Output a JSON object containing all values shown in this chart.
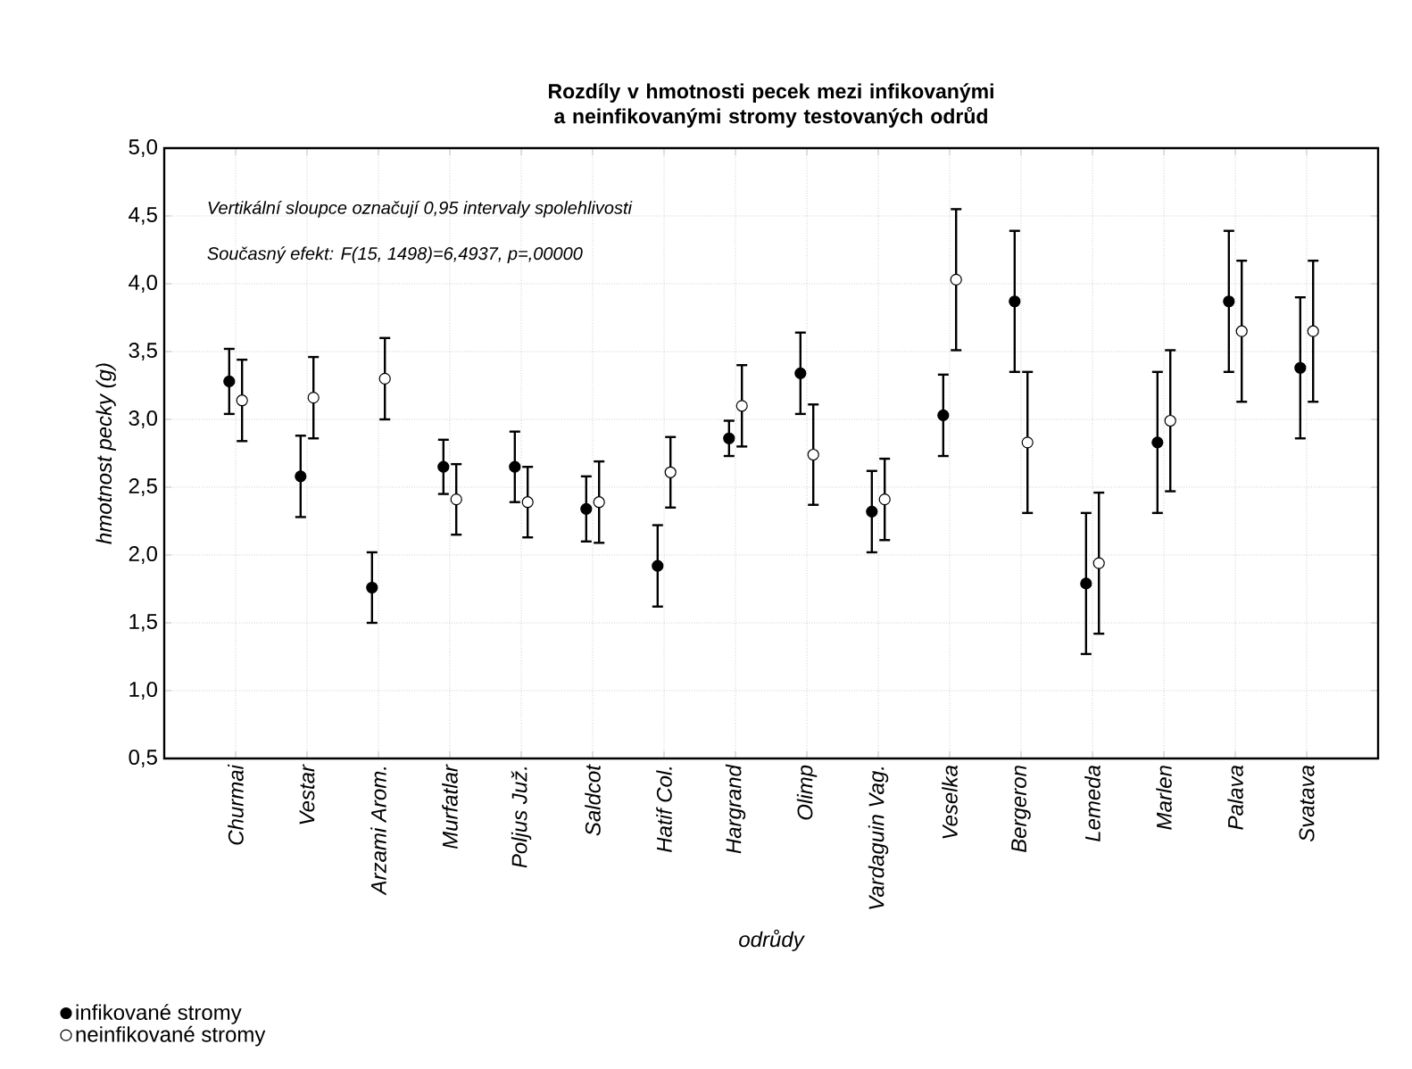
{
  "chart_data": {
    "type": "scatter",
    "title": "Rozdíly v hmotnosti pecek mezi infikovanými a neinfikovanými stromy testovaných odrůd",
    "xlabel": "odrůdy",
    "ylabel": "hmotnost pecky (g)",
    "annotations": [
      "Vertikální sloupce označují 0,95 intervaly spolehlivosti",
      "Současný efekt: F(15, 1498)=6,4937, p=,00000"
    ],
    "categories": [
      "Churmai",
      "Vestar",
      "Arzami Arom.",
      "Murfatlar",
      "Poljus Juž.",
      "Saldcot",
      "Hatif Col.",
      "Hargrand",
      "Olimp",
      "Vardaguin Vag.",
      "Veselka",
      "Bergeron",
      "Lemeda",
      "Marlen",
      "Palava",
      "Svatava"
    ],
    "series": [
      {
        "name": "infikované stromy",
        "color": "#000000",
        "values": [
          3.28,
          2.58,
          1.76,
          2.65,
          2.65,
          2.34,
          1.92,
          2.86,
          3.34,
          2.32,
          3.03,
          3.87,
          1.79,
          2.83,
          3.87,
          3.38
        ],
        "errors": [
          0.24,
          0.3,
          0.26,
          0.2,
          0.26,
          0.24,
          0.3,
          0.13,
          0.3,
          0.3,
          0.3,
          0.52,
          0.52,
          0.52,
          0.52,
          0.52
        ]
      },
      {
        "name": "neinfikované stromy",
        "color": "#ffffff",
        "values": [
          3.14,
          3.16,
          3.3,
          2.41,
          2.39,
          2.39,
          2.61,
          3.1,
          2.74,
          2.41,
          4.03,
          2.83,
          1.94,
          2.99,
          3.65,
          3.65
        ],
        "errors": [
          0.3,
          0.3,
          0.3,
          0.26,
          0.26,
          0.3,
          0.26,
          0.3,
          0.37,
          0.3,
          0.52,
          0.52,
          0.52,
          0.52,
          0.52,
          0.52
        ]
      }
    ],
    "ylim": [
      0.5,
      5.0
    ],
    "yticks": [
      {
        "value": 0.5,
        "label": "0,5"
      },
      {
        "value": 1.0,
        "label": "1,0"
      },
      {
        "value": 1.5,
        "label": "1,5"
      },
      {
        "value": 2.0,
        "label": "2,0"
      },
      {
        "value": 2.5,
        "label": "2,5"
      },
      {
        "value": 3.0,
        "label": "3,0"
      },
      {
        "value": 3.5,
        "label": "3,5"
      },
      {
        "value": 4.0,
        "label": "4,0"
      },
      {
        "value": 4.5,
        "label": "4,5"
      },
      {
        "value": 5.0,
        "label": "5,0"
      }
    ],
    "grid": true,
    "legend": "bottom left",
    "marker": "circle"
  }
}
